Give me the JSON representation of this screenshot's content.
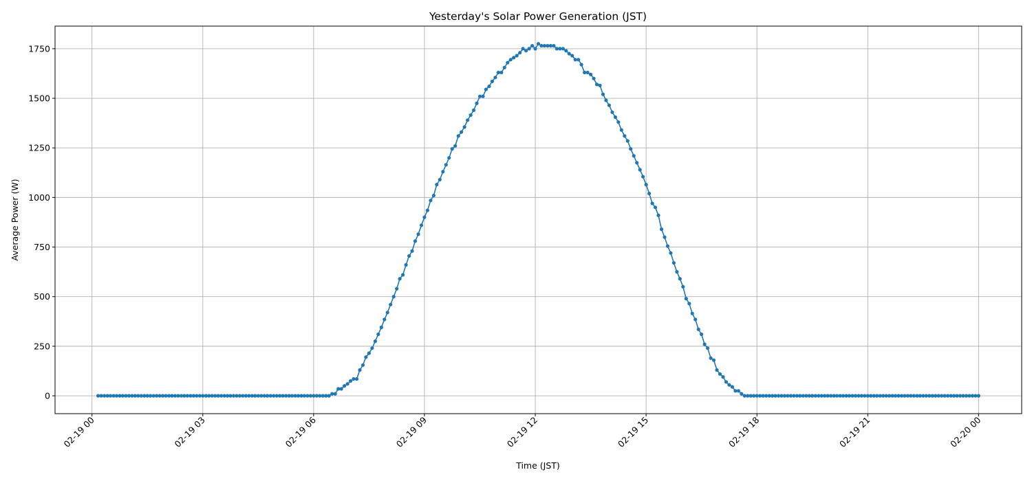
{
  "chart_data": {
    "type": "line",
    "title": "Yesterday's Solar Power Generation (JST)",
    "xlabel": "Time (JST)",
    "ylabel": "Average Power (W)",
    "x_start": "02-19 00:10",
    "x_interval_minutes": 5,
    "xlim": [
      "02-18 23:00",
      "02-20 01:10"
    ],
    "ylim": [
      -90,
      1864
    ],
    "x_ticks": [
      "02-19 00",
      "02-19 03",
      "02-19 06",
      "02-19 09",
      "02-19 12",
      "02-19 15",
      "02-19 18",
      "02-19 21",
      "02-20 00"
    ],
    "y_ticks": [
      0,
      250,
      500,
      750,
      1000,
      1250,
      1500,
      1750
    ],
    "grid": true,
    "marker": "circle",
    "color": "#1f77b4",
    "series": [
      {
        "values": [
          0,
          0,
          0,
          0,
          0,
          0,
          0,
          0,
          0,
          0,
          0,
          0,
          0,
          0,
          0,
          0,
          0,
          0,
          0,
          0,
          0,
          0,
          0,
          0,
          0,
          0,
          0,
          0,
          0,
          0,
          0,
          0,
          0,
          0,
          0,
          0,
          0,
          0,
          0,
          0,
          0,
          0,
          0,
          0,
          0,
          0,
          0,
          0,
          0,
          0,
          0,
          0,
          0,
          0,
          0,
          0,
          0,
          0,
          0,
          0,
          0,
          0,
          0,
          0,
          0,
          0,
          0,
          0,
          0,
          0,
          0,
          0,
          0,
          0,
          0,
          0,
          10,
          10,
          35,
          35,
          50,
          60,
          75,
          85,
          85,
          130,
          155,
          195,
          215,
          240,
          275,
          310,
          345,
          385,
          420,
          460,
          500,
          540,
          590,
          610,
          660,
          705,
          730,
          780,
          815,
          860,
          900,
          935,
          985,
          1010,
          1065,
          1090,
          1130,
          1165,
          1200,
          1245,
          1260,
          1310,
          1330,
          1355,
          1390,
          1415,
          1440,
          1475,
          1510,
          1510,
          1545,
          1560,
          1585,
          1605,
          1630,
          1630,
          1655,
          1680,
          1695,
          1705,
          1715,
          1730,
          1750,
          1740,
          1750,
          1765,
          1750,
          1775,
          1765,
          1765,
          1765,
          1765,
          1765,
          1750,
          1750,
          1750,
          1740,
          1725,
          1715,
          1695,
          1695,
          1670,
          1630,
          1630,
          1620,
          1600,
          1570,
          1565,
          1520,
          1490,
          1465,
          1430,
          1405,
          1380,
          1340,
          1310,
          1285,
          1245,
          1210,
          1175,
          1140,
          1105,
          1065,
          1020,
          970,
          950,
          910,
          840,
          800,
          755,
          720,
          670,
          625,
          590,
          550,
          490,
          465,
          415,
          385,
          335,
          310,
          260,
          240,
          190,
          180,
          130,
          110,
          95,
          70,
          55,
          45,
          25,
          25,
          10,
          0,
          0,
          0,
          0,
          0,
          0,
          0,
          0,
          0,
          0,
          0,
          0,
          0,
          0,
          0,
          0,
          0,
          0,
          0,
          0,
          0,
          0,
          0,
          0,
          0,
          0,
          0,
          0,
          0,
          0,
          0,
          0,
          0,
          0,
          0,
          0,
          0,
          0,
          0,
          0,
          0,
          0,
          0,
          0,
          0,
          0,
          0,
          0,
          0,
          0,
          0,
          0,
          0,
          0,
          0,
          0,
          0,
          0,
          0,
          0,
          0,
          0,
          0,
          0,
          0,
          0,
          0,
          0,
          0,
          0,
          0,
          0,
          0,
          0,
          0,
          0,
          0
        ]
      }
    ]
  }
}
